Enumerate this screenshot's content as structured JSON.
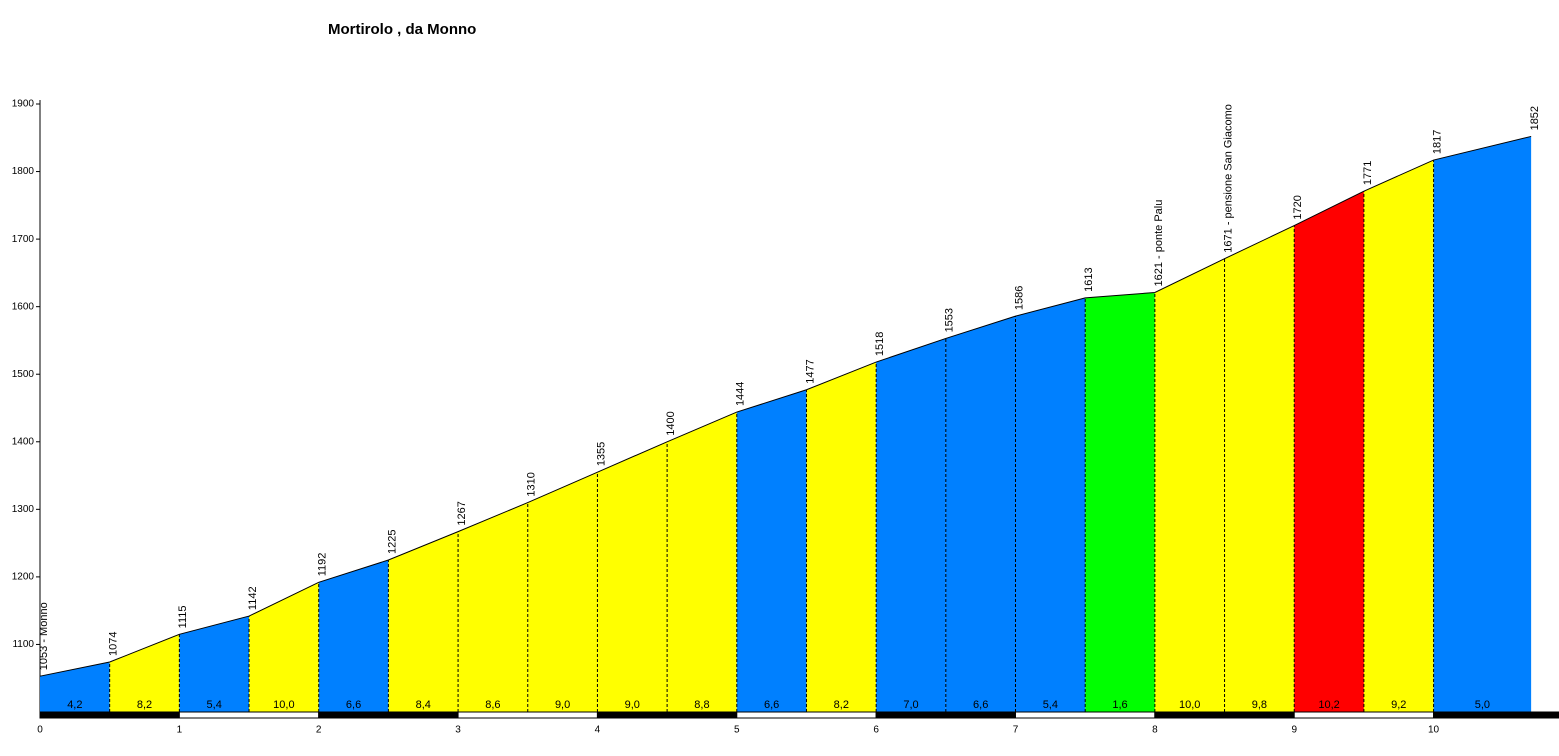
{
  "chart_data": {
    "type": "profile",
    "title": "Mortirolo , da Monno",
    "x": [
      0,
      0.5,
      1,
      1.5,
      2,
      2.5,
      3,
      3.5,
      4,
      4.5,
      5,
      5.5,
      6,
      6.5,
      7,
      7.5,
      8,
      8.5,
      9,
      9.5,
      10,
      10.7
    ],
    "values": [
      1053,
      1074,
      1115,
      1142,
      1192,
      1225,
      1267,
      1310,
      1355,
      1400,
      1444,
      1477,
      1518,
      1553,
      1586,
      1613,
      1621,
      1671,
      1720,
      1771,
      1817,
      1852
    ],
    "value_labels": [
      "1053 - Monno",
      "1074",
      "1115",
      "1142",
      "1192",
      "1225",
      "1267",
      "1310",
      "1355",
      "1400",
      "1444",
      "1477",
      "1518",
      "1553",
      "1586",
      "1613",
      "1621 - ponte Palu",
      "1671 - pensione San Giacomo",
      "1720",
      "1771",
      "1817",
      "1852"
    ],
    "segments": {
      "values": [
        4.2,
        8.2,
        5.4,
        10.0,
        6.6,
        8.4,
        8.6,
        9.0,
        9.0,
        8.8,
        6.6,
        8.2,
        7.0,
        6.6,
        5.4,
        1.6,
        10.0,
        9.8,
        10.2,
        9.2,
        5.0
      ],
      "value_labels": [
        "4,2",
        "8,2",
        "5,4",
        "10,0",
        "6,6",
        "8,4",
        "8,6",
        "9,0",
        "9,0",
        "8,8",
        "6,6",
        "8,2",
        "7,0",
        "6,6",
        "5,4",
        "1,6",
        "10,0",
        "9,8",
        "10,2",
        "9,2",
        "5,0"
      ],
      "colors": [
        "#0080ff",
        "#ffff00",
        "#0080ff",
        "#ffff00",
        "#0080ff",
        "#ffff00",
        "#ffff00",
        "#ffff00",
        "#ffff00",
        "#ffff00",
        "#0080ff",
        "#ffff00",
        "#0080ff",
        "#0080ff",
        "#0080ff",
        "#00ff00",
        "#ffff00",
        "#ffff00",
        "#ff0000",
        "#ffff00",
        "#0080ff"
      ]
    },
    "xlim": [
      0,
      10.9
    ],
    "xticks": [
      0,
      1,
      2,
      3,
      4,
      5,
      6,
      7,
      8,
      9,
      10
    ],
    "ylim": [
      1000,
      1900
    ],
    "yticks": [
      1100,
      1200,
      1300,
      1400,
      1500,
      1600,
      1700,
      1800,
      1900
    ]
  }
}
